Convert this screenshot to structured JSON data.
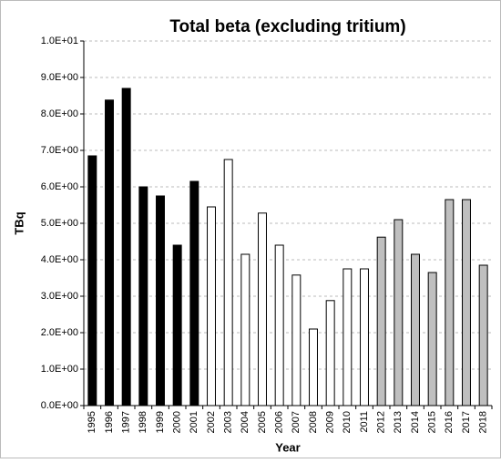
{
  "chart_data": {
    "type": "bar",
    "title": "Total beta (excluding tritium)",
    "x_label": "Year",
    "y_label": "TBq",
    "categories": [
      "1995",
      "1996",
      "1997",
      "1998",
      "1999",
      "2000",
      "2001",
      "2002",
      "2003",
      "2004",
      "2005",
      "2006",
      "2007",
      "2008",
      "2009",
      "2010",
      "2011",
      "2012",
      "2013",
      "2014",
      "2015",
      "2016",
      "2017",
      "2018"
    ],
    "values": [
      6.85,
      8.38,
      8.7,
      6.0,
      5.75,
      4.4,
      6.15,
      5.45,
      6.75,
      4.15,
      5.28,
      4.4,
      3.58,
      2.1,
      2.88,
      3.75,
      3.75,
      4.62,
      5.1,
      4.15,
      3.65,
      5.65,
      5.65,
      3.85
    ],
    "colors": [
      "#000000",
      "#000000",
      "#000000",
      "#000000",
      "#000000",
      "#000000",
      "#000000",
      "#ffffff",
      "#ffffff",
      "#ffffff",
      "#ffffff",
      "#ffffff",
      "#ffffff",
      "#ffffff",
      "#ffffff",
      "#ffffff",
      "#ffffff",
      "#bfbfbf",
      "#bfbfbf",
      "#bfbfbf",
      "#bfbfbf",
      "#bfbfbf",
      "#bfbfbf",
      "#bfbfbf"
    ],
    "ylim": [
      0,
      10
    ],
    "yticks": [
      {
        "value": 0,
        "label": "0.0E+00"
      },
      {
        "value": 1,
        "label": "1.0E+00"
      },
      {
        "value": 2,
        "label": "2.0E+00"
      },
      {
        "value": 3,
        "label": "3.0E+00"
      },
      {
        "value": 4,
        "label": "4.0E+00"
      },
      {
        "value": 5,
        "label": "5.0E+00"
      },
      {
        "value": 6,
        "label": "6.0E+00"
      },
      {
        "value": 7,
        "label": "7.0E+00"
      },
      {
        "value": 8,
        "label": "8.0E+00"
      },
      {
        "value": 9,
        "label": "9.0E+00"
      },
      {
        "value": 10,
        "label": "1.0E+01"
      }
    ],
    "grid": true
  }
}
